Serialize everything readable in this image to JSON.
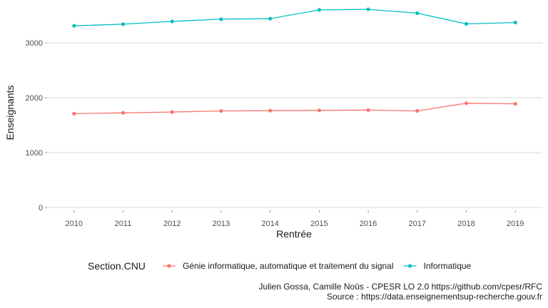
{
  "chart_data": {
    "type": "line",
    "title": "",
    "xlabel": "Rentrée",
    "ylabel": "Enseignants",
    "x": [
      2010,
      2011,
      2012,
      2013,
      2014,
      2015,
      2016,
      2017,
      2018,
      2019
    ],
    "x_tick_labels": [
      "2010",
      "2011",
      "2012",
      "2013",
      "2014",
      "2015",
      "2016",
      "2017",
      "2018",
      "2019"
    ],
    "y_ticks": [
      0,
      1000,
      2000,
      3000
    ],
    "y_tick_labels": [
      "0",
      "1000",
      "2000",
      "3000"
    ],
    "ylim": [
      -50,
      3650
    ],
    "grid": true,
    "legend": {
      "title": "Section.CNU",
      "placement": "bottom"
    },
    "series": [
      {
        "name": "Génie informatique, automatique et traitement du signal",
        "color": "#F8766D",
        "values": [
          1710,
          1725,
          1740,
          1760,
          1765,
          1770,
          1775,
          1760,
          1900,
          1890
        ]
      },
      {
        "name": "Informatique",
        "color": "#00BFC4",
        "values": [
          3310,
          3340,
          3390,
          3430,
          3440,
          3600,
          3610,
          3540,
          3345,
          3370
        ]
      }
    ],
    "caption": [
      "Julien Gossa, Camille Noûs - CPESR LO 2.0 https://github.com/cpesr/RFC",
      "Source : https://data.enseignementsup-recherche.gouv.fr"
    ]
  }
}
